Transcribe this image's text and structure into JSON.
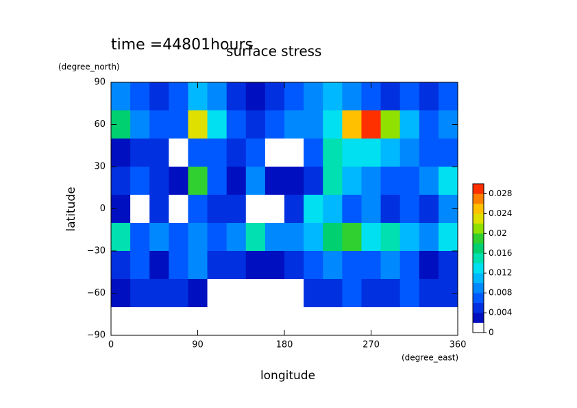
{
  "chart_data": {
    "type": "contour",
    "title": "surface stress",
    "subtitle": "time =44801hours",
    "x_label": "longitude",
    "x_unit": "(degree_east)",
    "y_label": "latitude",
    "y_unit": "(degree_north)",
    "xlim": [
      0,
      360
    ],
    "xticks": [
      0,
      90,
      180,
      270,
      360
    ],
    "ylim": [
      -90,
      90
    ],
    "yticks": [
      {
        "value": -90,
        "label": "−90"
      },
      {
        "value": -60,
        "label": "−60"
      },
      {
        "value": -30,
        "label": "−30"
      },
      0,
      30,
      60,
      90
    ],
    "field": {
      "lat": [
        80,
        60,
        40,
        20,
        0,
        -20,
        -40,
        -60,
        -80
      ],
      "lon": [
        10,
        30,
        50,
        70,
        90,
        110,
        130,
        150,
        170,
        190,
        210,
        230,
        250,
        270,
        290,
        310,
        330,
        350
      ],
      "values": [
        [
          0.008,
          0.006,
          0.004,
          0.006,
          0.01,
          0.008,
          0.004,
          0.002,
          0.004,
          0.006,
          0.008,
          0.01,
          0.008,
          0.006,
          0.004,
          0.006,
          0.004,
          0.006
        ],
        [
          0.016,
          0.008,
          0.006,
          0.006,
          0.022,
          0.012,
          0.006,
          0.004,
          0.006,
          0.008,
          0.008,
          0.012,
          0.024,
          0.028,
          0.02,
          0.01,
          0.006,
          0.008
        ],
        [
          0.002,
          0.004,
          0.004,
          0,
          0.006,
          0.006,
          0.004,
          0.006,
          0,
          0,
          0.006,
          0.014,
          0.012,
          0.012,
          0.01,
          0.008,
          0.006,
          0.006
        ],
        [
          0.004,
          0.006,
          0.004,
          0.002,
          0.018,
          0.006,
          0.002,
          0.008,
          0.002,
          0.002,
          0.004,
          0.014,
          0.01,
          0.008,
          0.006,
          0.006,
          0.008,
          0.012
        ],
        [
          0.002,
          0,
          0.004,
          0,
          0.006,
          0.004,
          0.004,
          0,
          0,
          0.004,
          0.012,
          0.01,
          0.006,
          0.008,
          0.004,
          0.006,
          0.004,
          0.008
        ],
        [
          0.014,
          0.006,
          0.008,
          0.006,
          0.008,
          0.006,
          0.008,
          0.014,
          0.008,
          0.008,
          0.01,
          0.016,
          0.018,
          0.012,
          0.014,
          0.01,
          0.008,
          0.012
        ],
        [
          0.004,
          0.006,
          0.002,
          0.006,
          0.008,
          0.004,
          0.004,
          0.002,
          0.002,
          0.004,
          0.006,
          0.008,
          0.006,
          0.006,
          0.008,
          0.006,
          0.002,
          0.004
        ],
        [
          0.002,
          0.004,
          0.004,
          0.004,
          0.002,
          0,
          0,
          0,
          0,
          0,
          0.004,
          0.004,
          0.006,
          0.004,
          0.004,
          0.006,
          0.004,
          0.004
        ],
        [
          0,
          0,
          0,
          0,
          0,
          0,
          0,
          0,
          0,
          0,
          0,
          0,
          0,
          0,
          0,
          0,
          0,
          0
        ]
      ]
    },
    "colorbar": {
      "levels": [
        0,
        0.002,
        0.004,
        0.006,
        0.008,
        0.01,
        0.012,
        0.014,
        0.016,
        0.018,
        0.02,
        0.022,
        0.024,
        0.026,
        0.028,
        0.03
      ],
      "colors": [
        "#ffffff",
        "#0010c0",
        "#0030e0",
        "#0058ff",
        "#0088ff",
        "#00b8ff",
        "#00e0f0",
        "#00e0b0",
        "#00d070",
        "#30d030",
        "#90e000",
        "#e0e000",
        "#ffc000",
        "#ff8000",
        "#ff3000"
      ],
      "ticks": [
        0,
        0.004,
        0.008,
        0.012,
        0.016,
        0.02,
        0.024,
        0.028
      ]
    }
  }
}
